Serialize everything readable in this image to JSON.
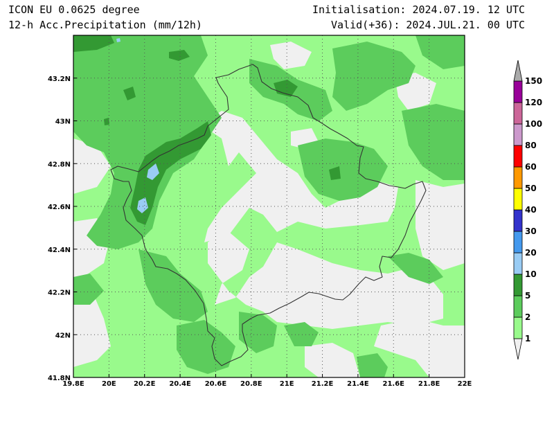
{
  "header": {
    "model": "ICON EU 0.0625 degree",
    "field": "12-h Acc.Precipitation (mm/12h)",
    "init": "Initialisation: 2024.07.19. 12 UTC",
    "valid": "Valid(+36): 2024.JUL.21. 00 UTC"
  },
  "map": {
    "lon_range": [
      19.8,
      22.0
    ],
    "lat_range": [
      41.8,
      43.4
    ],
    "lon_labels": [
      "19.8E",
      "20E",
      "20.2E",
      "20.4E",
      "20.6E",
      "20.8E",
      "21E",
      "21.2E",
      "21.4E",
      "21.6E",
      "21.8E",
      "22E"
    ],
    "lat_labels": [
      "41.8N",
      "42N",
      "42.2N",
      "42.4N",
      "42.6N",
      "42.8N",
      "43N",
      "43.2N"
    ],
    "gridlines": "dotted"
  },
  "colorbar": {
    "levels": [
      "1",
      "2",
      "5",
      "10",
      "20",
      "30",
      "40",
      "50",
      "60",
      "80",
      "100",
      "120",
      "150"
    ],
    "colors": [
      "#f0f0f0",
      "#99fa8c",
      "#5ccc5c",
      "#339933",
      "#99ccf4",
      "#4499ee",
      "#3333cc",
      "#ffff00",
      "#ff9900",
      "#ff0000",
      "#cc99cc",
      "#cc6699",
      "#990099",
      "#aaaaaa"
    ]
  }
}
